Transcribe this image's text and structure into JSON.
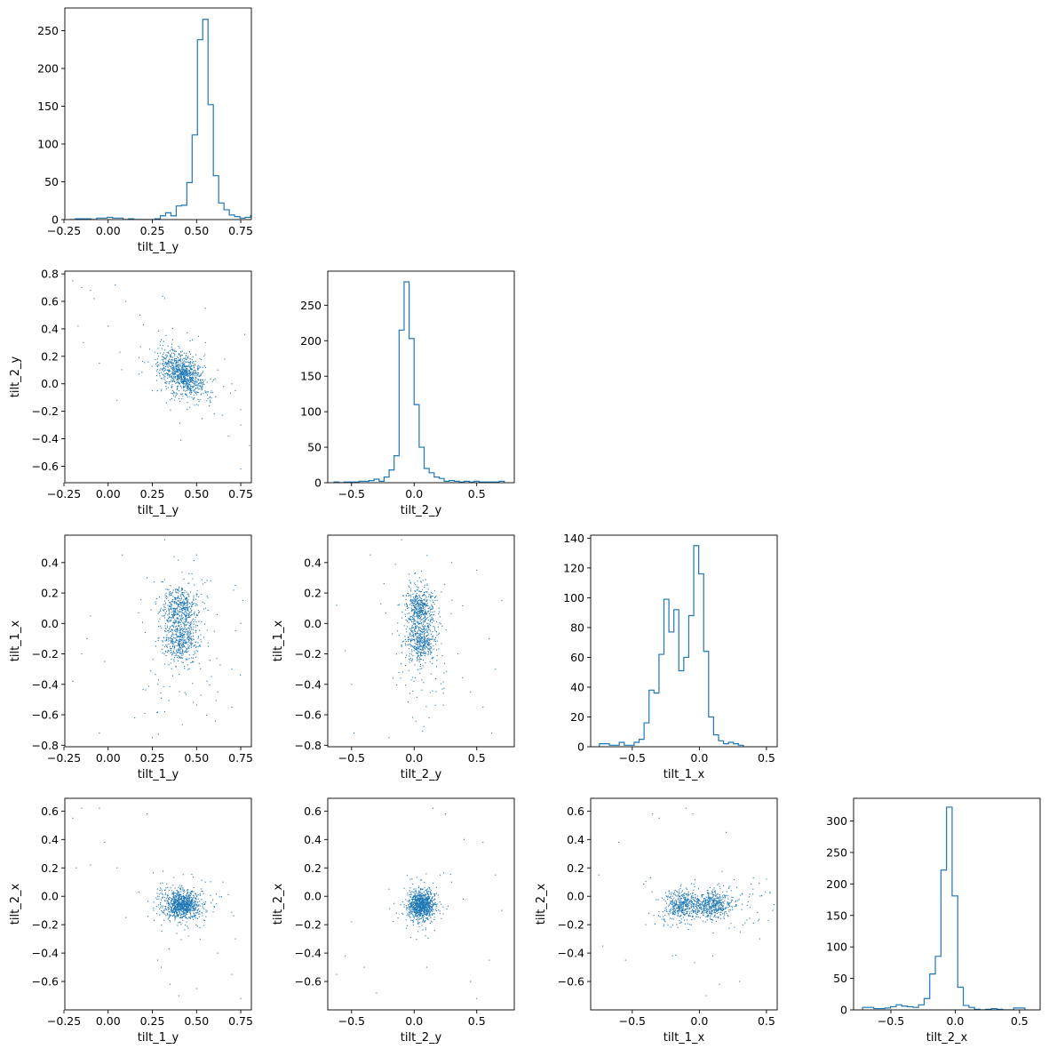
{
  "style": {
    "accent": "#1f77b4",
    "frame": "#000000",
    "background": "#ffffff"
  },
  "chart_data": [
    {
      "id": "hist-tilt_1_y",
      "type": "histogram",
      "row": 0,
      "col": 0,
      "xlabel": "tilt_1_y",
      "ylabel": "",
      "xlim": [
        -0.245,
        0.81
      ],
      "ylim": [
        0,
        280
      ],
      "xticks": [
        -0.25,
        0.0,
        0.25,
        0.5,
        0.75
      ],
      "xtick_labels": [
        "−0.25",
        "0.00",
        "0.25",
        "0.50",
        "0.75"
      ],
      "yticks": [
        0,
        50,
        100,
        150,
        200,
        250
      ],
      "ytick_labels": [
        "0",
        "50",
        "100",
        "150",
        "200",
        "250"
      ],
      "bin_start": -0.215,
      "bin_width": 0.03,
      "counts": [
        0,
        1,
        1,
        1,
        0,
        2,
        2,
        3,
        2,
        2,
        0,
        1,
        0,
        0,
        0,
        0,
        1,
        5,
        9,
        5,
        18,
        19,
        49,
        112,
        238,
        265,
        152,
        58,
        22,
        13,
        6,
        4,
        2,
        3,
        5,
        2
      ]
    },
    {
      "id": "scatter-tilt_1_y-tilt_2_y",
      "type": "scatter",
      "row": 1,
      "col": 0,
      "xlabel": "tilt_1_y",
      "ylabel": "tilt_2_y",
      "xlim": [
        -0.245,
        0.81
      ],
      "ylim": [
        -0.72,
        0.82
      ],
      "xticks": [
        -0.25,
        0.0,
        0.25,
        0.5,
        0.75
      ],
      "xtick_labels": [
        "−0.25",
        "0.00",
        "0.25",
        "0.50",
        "0.75"
      ],
      "yticks": [
        -0.6,
        -0.4,
        -0.2,
        0.0,
        0.2,
        0.4,
        0.6,
        0.8
      ],
      "ytick_labels": [
        "−0.6",
        "−0.4",
        "−0.2",
        "0.0",
        "0.2",
        "0.4",
        "0.6",
        "0.8"
      ],
      "point_count": 1000,
      "cluster": {
        "x": [
          0.42,
          0.06
        ],
        "y": [
          0.07,
          0.08
        ],
        "corr": -0.45
      },
      "outliers": [
        [
          -0.2,
          0.75
        ],
        [
          -0.15,
          0.7
        ],
        [
          -0.1,
          0.68
        ],
        [
          -0.08,
          0.62
        ],
        [
          0.04,
          0.72
        ],
        [
          0.1,
          0.6
        ],
        [
          -0.17,
          0.42
        ],
        [
          -0.14,
          0.3
        ],
        [
          0.0,
          0.42
        ],
        [
          0.18,
          0.5
        ],
        [
          0.32,
          0.62
        ],
        [
          0.55,
          0.55
        ],
        [
          0.7,
          0.0
        ],
        [
          0.72,
          -0.05
        ],
        [
          0.6,
          -0.22
        ],
        [
          0.75,
          -0.3
        ],
        [
          0.68,
          -0.38
        ],
        [
          0.75,
          -0.62
        ],
        [
          0.8,
          -0.45
        ],
        [
          0.05,
          -0.12
        ],
        [
          -0.05,
          0.15
        ],
        [
          0.5,
          -0.15
        ],
        [
          0.62,
          0.1
        ],
        [
          0.25,
          -0.05
        ],
        [
          0.3,
          0.32
        ],
        [
          0.55,
          0.3
        ]
      ]
    },
    {
      "id": "hist-tilt_2_y",
      "type": "histogram",
      "row": 1,
      "col": 1,
      "xlabel": "tilt_2_y",
      "ylabel": "",
      "xlim": [
        -0.69,
        0.8
      ],
      "ylim": [
        0,
        298
      ],
      "xticks": [
        -0.5,
        0.0,
        0.5
      ],
      "xtick_labels": [
        "−0.5",
        "0.0",
        "0.5"
      ],
      "yticks": [
        0,
        50,
        100,
        150,
        200,
        250
      ],
      "ytick_labels": [
        "0",
        "50",
        "100",
        "150",
        "200",
        "250"
      ],
      "bin_start": -0.64,
      "bin_width": 0.04,
      "counts": [
        1,
        0,
        1,
        1,
        1,
        2,
        2,
        3,
        5,
        2,
        8,
        18,
        38,
        215,
        283,
        203,
        110,
        50,
        20,
        14,
        8,
        6,
        2,
        3,
        2,
        1,
        2,
        1,
        2,
        1,
        1,
        1,
        1,
        2
      ]
    },
    {
      "id": "scatter-tilt_1_y-tilt_1_x",
      "type": "scatter",
      "row": 2,
      "col": 0,
      "xlabel": "tilt_1_y",
      "ylabel": "tilt_1_x",
      "xlim": [
        -0.245,
        0.81
      ],
      "ylim": [
        -0.81,
        0.58
      ],
      "xticks": [
        -0.25,
        0.0,
        0.25,
        0.5,
        0.75
      ],
      "xtick_labels": [
        "−0.25",
        "0.00",
        "0.25",
        "0.50",
        "0.75"
      ],
      "yticks": [
        -0.8,
        -0.6,
        -0.4,
        -0.2,
        0.0,
        0.2,
        0.4
      ],
      "ytick_labels": [
        "−0.8",
        "−0.6",
        "−0.4",
        "−0.2",
        "0.0",
        "0.2",
        "0.4"
      ],
      "point_count": 1000,
      "cluster": {
        "x": [
          0.41,
          0.055
        ],
        "y": [
          0.1,
          -0.12
        ],
        "y_sd": 0.07
      },
      "outliers": [
        [
          -0.2,
          -0.38
        ],
        [
          -0.12,
          -0.1
        ],
        [
          -0.05,
          -0.72
        ],
        [
          0.08,
          0.45
        ],
        [
          0.32,
          0.55
        ],
        [
          0.32,
          -0.58
        ],
        [
          0.7,
          -0.3
        ],
        [
          0.72,
          0.25
        ],
        [
          0.75,
          0.0
        ],
        [
          -0.1,
          0.05
        ],
        [
          0.5,
          0.45
        ],
        [
          -0.15,
          -0.2
        ],
        [
          0.22,
          0.3
        ],
        [
          0.25,
          -0.75
        ],
        [
          0.62,
          -0.45
        ],
        [
          0.15,
          -0.62
        ],
        [
          -0.02,
          -0.25
        ],
        [
          0.58,
          0.28
        ],
        [
          0.7,
          -0.55
        ]
      ]
    },
    {
      "id": "scatter-tilt_2_y-tilt_1_x",
      "type": "scatter",
      "row": 2,
      "col": 1,
      "xlabel": "tilt_2_y",
      "ylabel": "tilt_1_x",
      "xlim": [
        -0.69,
        0.8
      ],
      "ylim": [
        -0.81,
        0.58
      ],
      "xticks": [
        -0.5,
        0.0,
        0.5
      ],
      "xtick_labels": [
        "−0.5",
        "0.0",
        "0.5"
      ],
      "yticks": [
        -0.8,
        -0.6,
        -0.4,
        -0.2,
        0.0,
        0.2,
        0.4
      ],
      "ytick_labels": [
        "−0.8",
        "−0.6",
        "−0.4",
        "−0.2",
        "0.0",
        "0.2",
        "0.4"
      ],
      "point_count": 1000,
      "cluster": {
        "x": [
          0.05,
          0.06
        ],
        "y": [
          0.1,
          -0.12
        ],
        "y_sd": 0.07
      },
      "outliers": [
        [
          -0.62,
          0.12
        ],
        [
          -0.55,
          -0.18
        ],
        [
          -0.48,
          -0.72
        ],
        [
          -0.35,
          0.45
        ],
        [
          -0.1,
          0.55
        ],
        [
          0.5,
          0.35
        ],
        [
          0.6,
          -0.1
        ],
        [
          0.65,
          -0.3
        ],
        [
          0.55,
          -0.55
        ],
        [
          0.7,
          0.15
        ],
        [
          -0.5,
          -0.4
        ],
        [
          0.3,
          0.4
        ],
        [
          0.12,
          -0.62
        ],
        [
          -0.2,
          -0.75
        ],
        [
          0.45,
          -0.45
        ],
        [
          0.62,
          -0.72
        ],
        [
          0.35,
          -0.2
        ]
      ]
    },
    {
      "id": "hist-tilt_1_x",
      "type": "histogram",
      "row": 2,
      "col": 2,
      "xlabel": "tilt_1_x",
      "ylabel": "",
      "xlim": [
        -0.81,
        0.58
      ],
      "ylim": [
        0,
        142
      ],
      "xticks": [
        -0.5,
        0.0,
        0.5
      ],
      "xtick_labels": [
        "−0.5",
        "0.0",
        "0.5"
      ],
      "yticks": [
        0,
        20,
        40,
        60,
        80,
        100,
        120,
        140
      ],
      "ytick_labels": [
        "0",
        "20",
        "40",
        "60",
        "80",
        "100",
        "120",
        "140"
      ],
      "bin_start": -0.745,
      "bin_width": 0.037,
      "counts": [
        2,
        2,
        1,
        1,
        3,
        1,
        1,
        3,
        5,
        16,
        38,
        36,
        62,
        99,
        77,
        92,
        51,
        60,
        88,
        135,
        116,
        64,
        20,
        8,
        4,
        2,
        3,
        2,
        1
      ]
    },
    {
      "id": "scatter-tilt_1_y-tilt_2_x",
      "type": "scatter",
      "row": 3,
      "col": 0,
      "xlabel": "tilt_1_y",
      "ylabel": "tilt_2_x",
      "xlim": [
        -0.245,
        0.81
      ],
      "ylim": [
        -0.8,
        0.69
      ],
      "xticks": [
        -0.25,
        0.0,
        0.25,
        0.5,
        0.75
      ],
      "xtick_labels": [
        "−0.25",
        "0.00",
        "0.25",
        "0.50",
        "0.75"
      ],
      "yticks": [
        -0.6,
        -0.4,
        -0.2,
        0.0,
        0.2,
        0.4,
        0.6
      ],
      "ytick_labels": [
        "−0.6",
        "−0.4",
        "−0.2",
        "0.0",
        "0.2",
        "0.4",
        "0.6"
      ],
      "point_count": 1000,
      "cluster": {
        "x": [
          0.42,
          0.05
        ],
        "y": [
          -0.06,
          0.05
        ],
        "corr": 0.0
      },
      "outliers": [
        [
          -0.2,
          0.55
        ],
        [
          -0.15,
          0.62
        ],
        [
          -0.05,
          0.62
        ],
        [
          -0.02,
          0.38
        ],
        [
          -0.18,
          0.2
        ],
        [
          -0.1,
          0.22
        ],
        [
          0.1,
          -0.15
        ],
        [
          0.22,
          0.58
        ],
        [
          0.3,
          -0.5
        ],
        [
          0.35,
          -0.62
        ],
        [
          0.4,
          -0.7
        ],
        [
          0.62,
          -0.4
        ],
        [
          0.7,
          -0.55
        ],
        [
          0.72,
          -0.3
        ],
        [
          0.75,
          -0.72
        ],
        [
          0.65,
          0.1
        ],
        [
          0.55,
          0.1
        ],
        [
          0.28,
          -0.45
        ],
        [
          0.5,
          -0.65
        ],
        [
          0.05,
          0.2
        ]
      ]
    },
    {
      "id": "scatter-tilt_2_y-tilt_2_x",
      "type": "scatter",
      "row": 3,
      "col": 1,
      "xlabel": "tilt_2_y",
      "ylabel": "tilt_2_x",
      "xlim": [
        -0.69,
        0.8
      ],
      "ylim": [
        -0.8,
        0.69
      ],
      "xticks": [
        -0.5,
        0.0,
        0.5
      ],
      "xtick_labels": [
        "−0.5",
        "0.0",
        "0.5"
      ],
      "yticks": [
        -0.6,
        -0.4,
        -0.2,
        0.0,
        0.2,
        0.4,
        0.6
      ],
      "ytick_labels": [
        "−0.6",
        "−0.4",
        "−0.2",
        "0.0",
        "0.2",
        "0.4",
        "0.6"
      ],
      "point_count": 1000,
      "cluster": {
        "x": [
          0.06,
          0.05
        ],
        "y": [
          -0.06,
          0.05
        ],
        "corr": 0.0
      },
      "outliers": [
        [
          -0.62,
          -0.55
        ],
        [
          -0.55,
          -0.42
        ],
        [
          -0.4,
          -0.5
        ],
        [
          -0.3,
          -0.68
        ],
        [
          0.15,
          0.62
        ],
        [
          0.25,
          0.58
        ],
        [
          0.4,
          0.4
        ],
        [
          0.55,
          0.38
        ],
        [
          0.65,
          0.15
        ],
        [
          0.7,
          -0.1
        ],
        [
          0.6,
          -0.45
        ],
        [
          0.45,
          -0.6
        ],
        [
          0.5,
          -0.72
        ],
        [
          -0.2,
          0.05
        ],
        [
          -0.5,
          -0.18
        ],
        [
          0.3,
          0.1
        ],
        [
          0.1,
          -0.5
        ]
      ]
    },
    {
      "id": "scatter-tilt_1_x-tilt_2_x",
      "type": "scatter",
      "row": 3,
      "col": 2,
      "xlabel": "tilt_1_x",
      "ylabel": "tilt_2_x",
      "xlim": [
        -0.81,
        0.58
      ],
      "ylim": [
        -0.8,
        0.69
      ],
      "xticks": [
        -0.5,
        0.0,
        0.5
      ],
      "xtick_labels": [
        "−0.5",
        "0.0",
        "0.5"
      ],
      "yticks": [
        -0.6,
        -0.4,
        -0.2,
        0.0,
        0.2,
        0.4,
        0.6
      ],
      "ytick_labels": [
        "−0.6",
        "−0.4",
        "−0.2",
        "0.0",
        "0.2",
        "0.4",
        "0.6"
      ],
      "point_count": 1000,
      "cluster": {
        "x": [
          -0.12,
          0.1
        ],
        "x_sd": 0.07,
        "y": [
          -0.06,
          0.05
        ]
      },
      "outliers": [
        [
          -0.75,
          0.15
        ],
        [
          -0.72,
          -0.35
        ],
        [
          -0.6,
          0.38
        ],
        [
          -0.55,
          -0.45
        ],
        [
          -0.35,
          0.58
        ],
        [
          -0.3,
          0.55
        ],
        [
          -0.1,
          0.62
        ],
        [
          -0.05,
          0.58
        ],
        [
          0.2,
          0.45
        ],
        [
          0.4,
          0.05
        ],
        [
          0.45,
          -0.3
        ],
        [
          0.3,
          -0.6
        ],
        [
          0.15,
          -0.62
        ],
        [
          0.05,
          -0.7
        ],
        [
          0.1,
          -0.42
        ],
        [
          -0.2,
          -0.42
        ],
        [
          -0.4,
          -0.2
        ],
        [
          0.5,
          0.12
        ]
      ]
    },
    {
      "id": "hist-tilt_2_x",
      "type": "histogram",
      "row": 3,
      "col": 3,
      "xlabel": "tilt_2_x",
      "ylabel": "",
      "xlim": [
        -0.79,
        0.66
      ],
      "ylim": [
        0,
        336
      ],
      "xticks": [
        -0.5,
        0.0,
        0.5
      ],
      "xtick_labels": [
        "−0.5",
        "0.0",
        "0.5"
      ],
      "yticks": [
        0,
        50,
        100,
        150,
        200,
        250,
        300
      ],
      "ytick_labels": [
        "0",
        "50",
        "100",
        "150",
        "200",
        "250",
        "300"
      ],
      "bin_start": -0.72,
      "bin_width": 0.0435,
      "counts": [
        4,
        4,
        2,
        2,
        3,
        5,
        8,
        6,
        5,
        4,
        8,
        18,
        57,
        85,
        222,
        322,
        181,
        36,
        7,
        4,
        1,
        0,
        1,
        2,
        1,
        0,
        0,
        3,
        3
      ]
    }
  ]
}
